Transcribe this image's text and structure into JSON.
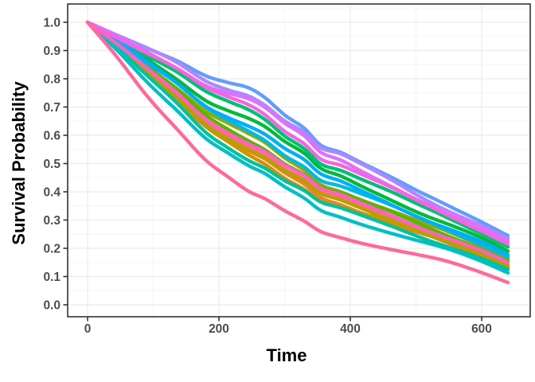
{
  "chart_data": {
    "type": "line",
    "title": "",
    "xlabel": "Time",
    "ylabel": "Survival Probability",
    "legend": "none",
    "grid": "major+minor",
    "xlim": [
      -30,
      674
    ],
    "ylim": [
      -0.042,
      1.065
    ],
    "t_max": 640,
    "x_ticks": [
      0,
      200,
      400,
      600
    ],
    "x_tick_labels": [
      "0",
      "200",
      "400",
      "600"
    ],
    "x_minor": [
      100,
      300,
      500
    ],
    "y_ticks": [
      1.0,
      0.9,
      0.8,
      0.7,
      0.6,
      0.5,
      0.4,
      0.3,
      0.2,
      0.1,
      0.0
    ],
    "y_tick_labels": [
      "1.0",
      "0.9",
      "0.8",
      "0.7",
      "0.6",
      "0.5",
      "0.4",
      "0.3",
      "0.2",
      "0.1",
      "0.0"
    ],
    "y_minor": [
      1.05,
      0.95,
      0.85,
      0.75,
      0.65,
      0.55,
      0.45,
      0.35,
      0.25,
      0.15,
      0.05
    ],
    "reference_curves": {
      "comment_t": "shared time knots; every curve starts at S(0)=1.0 and ends at t=640",
      "t": [
        0,
        45,
        90,
        135,
        180,
        215,
        245,
        270,
        300,
        330,
        355,
        385,
        415,
        460,
        505,
        550,
        600,
        640
      ],
      "top": [
        1.0,
        0.956,
        0.912,
        0.865,
        0.806,
        0.78,
        0.763,
        0.73,
        0.672,
        0.628,
        0.57,
        0.546,
        0.51,
        0.455,
        0.396,
        0.345,
        0.292,
        0.245
      ],
      "bottom": [
        1.0,
        0.878,
        0.745,
        0.628,
        0.51,
        0.446,
        0.396,
        0.37,
        0.33,
        0.296,
        0.262,
        0.243,
        0.225,
        0.2,
        0.175,
        0.148,
        0.112,
        0.079
      ]
    },
    "series": [
      {
        "id": "curve-01",
        "color": "#F8766D",
        "start": 1.0,
        "end": 0.145
      },
      {
        "id": "curve-02",
        "color": "#E88526",
        "start": 1.0,
        "end": 0.135
      },
      {
        "id": "curve-03",
        "color": "#D39200",
        "start": 1.0,
        "end": 0.131
      },
      {
        "id": "curve-04",
        "color": "#B79F00",
        "start": 1.0,
        "end": 0.14
      },
      {
        "id": "curve-05",
        "color": "#93AA00",
        "start": 1.0,
        "end": 0.162
      },
      {
        "id": "curve-06",
        "color": "#5EB300",
        "start": 1.0,
        "end": 0.155
      },
      {
        "id": "curve-07",
        "color": "#00BA38",
        "start": 1.0,
        "end": 0.19
      },
      {
        "id": "curve-08",
        "color": "#00BF74",
        "start": 1.0,
        "end": 0.205
      },
      {
        "id": "curve-09",
        "color": "#00C19F",
        "start": 1.0,
        "end": 0.125
      },
      {
        "id": "curve-10",
        "color": "#00BFC4",
        "start": 1.0,
        "end": 0.113
      },
      {
        "id": "curve-11",
        "color": "#00B9E3",
        "start": 1.0,
        "end": 0.17
      },
      {
        "id": "curve-12",
        "color": "#00ADFA",
        "start": 1.0,
        "end": 0.178
      },
      {
        "id": "curve-13",
        "color": "#619CFF",
        "start": 1.0,
        "end": 0.245
      },
      {
        "id": "curve-14",
        "color": "#AE87FF",
        "start": 1.0,
        "end": 0.235
      },
      {
        "id": "curve-15",
        "color": "#DB72FB",
        "start": 1.0,
        "end": 0.225
      },
      {
        "id": "curve-16",
        "color": "#F564E3",
        "start": 1.0,
        "end": 0.215
      },
      {
        "id": "curve-17",
        "color": "#FF61C3",
        "start": 1.0,
        "end": 0.15
      },
      {
        "id": "curve-18",
        "color": "#FF699C",
        "start": 1.0,
        "end": 0.079
      }
    ],
    "colors": {
      "background": "#FFFFFF",
      "panel_background": "#FFFFFF",
      "panel_border": "#333333",
      "grid_major": "#EBEBEB",
      "grid_minor": "#F5F5F5",
      "tick_mark": "#333333",
      "tick_label": "#4D4D4D",
      "axis_title": "#000000"
    }
  }
}
